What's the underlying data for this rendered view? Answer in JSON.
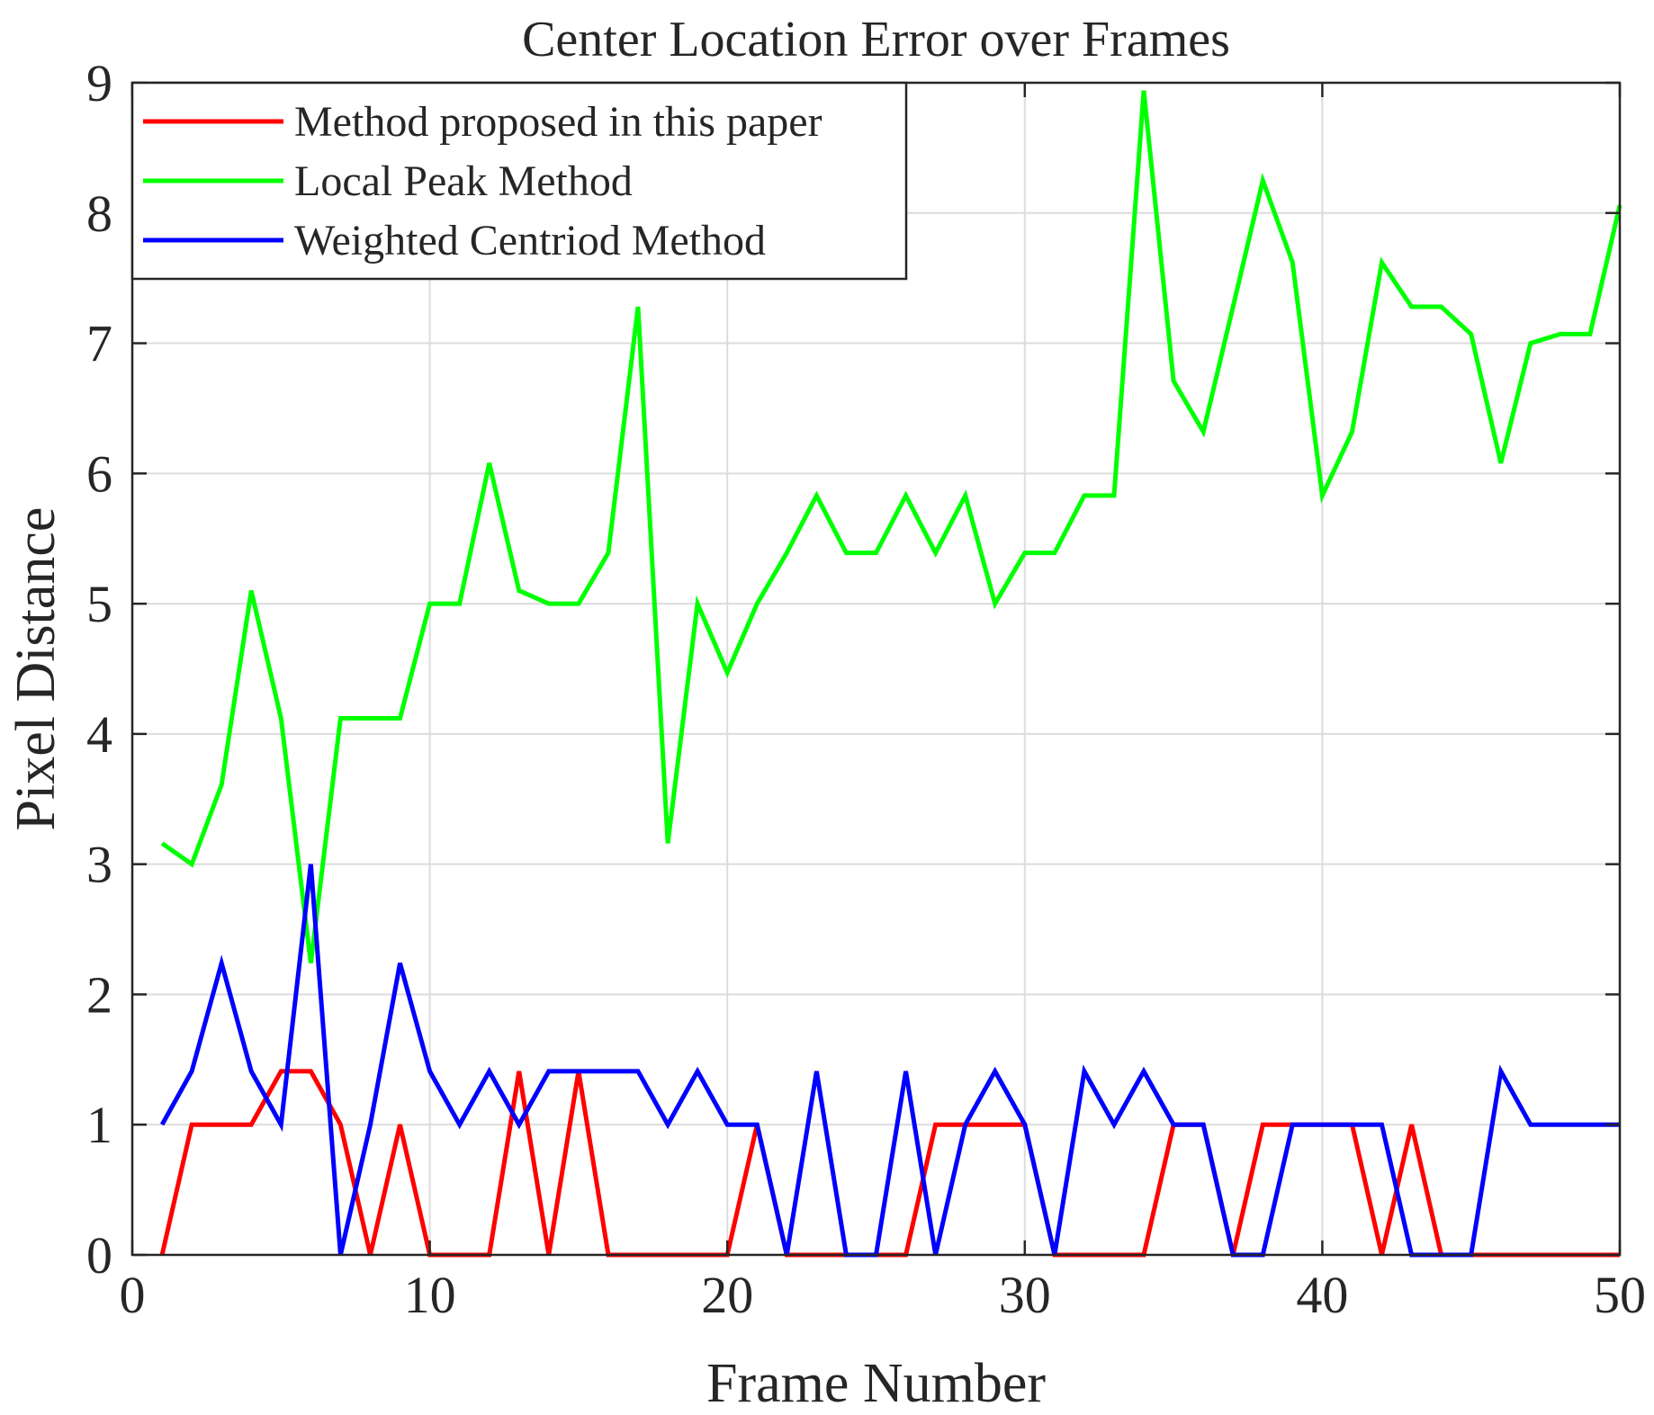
{
  "chart_data": {
    "type": "line",
    "title": "Center Location Error over Frames",
    "xlabel": "Frame Number",
    "ylabel": "Pixel Distance",
    "xlim": [
      0,
      50
    ],
    "ylim": [
      0,
      9
    ],
    "xticks": [
      0,
      10,
      20,
      30,
      40,
      50
    ],
    "yticks": [
      0,
      1,
      2,
      3,
      4,
      5,
      6,
      7,
      8,
      9
    ],
    "grid": true,
    "legend_position": "top-left",
    "x": [
      1,
      2,
      3,
      4,
      5,
      6,
      7,
      8,
      9,
      10,
      11,
      12,
      13,
      14,
      15,
      16,
      17,
      18,
      19,
      20,
      21,
      22,
      23,
      24,
      25,
      26,
      27,
      28,
      29,
      30,
      31,
      32,
      33,
      34,
      35,
      36,
      37,
      38,
      39,
      40,
      41,
      42,
      43,
      44,
      45,
      46,
      47,
      48,
      49,
      50
    ],
    "series": [
      {
        "name": "Method proposed in this paper",
        "color": "#ff0000",
        "values": [
          0,
          1,
          1,
          1,
          1.41,
          1.41,
          1,
          0,
          1,
          0,
          0,
          0,
          1.41,
          0,
          1.41,
          0,
          0,
          0,
          0,
          0,
          1,
          0,
          0,
          0,
          0,
          0,
          1,
          1,
          1,
          1,
          0,
          0,
          0,
          0,
          1,
          1,
          0,
          1,
          1,
          1,
          1,
          0,
          1,
          0,
          0,
          0,
          0,
          0,
          0,
          0
        ]
      },
      {
        "name": "Local Peak Method",
        "color": "#00ff00",
        "values": [
          3.16,
          3.0,
          3.61,
          5.1,
          4.12,
          2.24,
          4.12,
          4.12,
          4.12,
          5.0,
          5.0,
          6.08,
          5.1,
          5.0,
          5.0,
          5.39,
          7.28,
          3.16,
          5.0,
          4.47,
          5.0,
          5.39,
          5.83,
          5.39,
          5.39,
          5.83,
          5.39,
          5.83,
          5.0,
          5.39,
          5.39,
          5.83,
          5.83,
          8.94,
          6.71,
          6.32,
          7.28,
          8.25,
          7.62,
          5.83,
          6.32,
          7.62,
          7.28,
          7.28,
          7.07,
          6.08,
          7.0,
          7.07,
          7.07,
          8.06
        ]
      },
      {
        "name": "Weighted Centriod Method",
        "color": "#0000ff",
        "values": [
          1,
          1.41,
          2.24,
          1.41,
          1,
          3.0,
          0,
          1,
          2.24,
          1.41,
          1,
          1.41,
          1,
          1.41,
          1.41,
          1.41,
          1.41,
          1,
          1.41,
          1,
          1,
          0,
          1.41,
          0,
          0,
          1.41,
          0,
          1,
          1.41,
          1,
          0,
          1.41,
          1,
          1.41,
          1,
          1,
          0,
          0,
          1,
          1,
          1,
          1,
          0,
          0,
          0,
          1.41,
          1,
          1,
          1,
          1
        ]
      }
    ]
  }
}
